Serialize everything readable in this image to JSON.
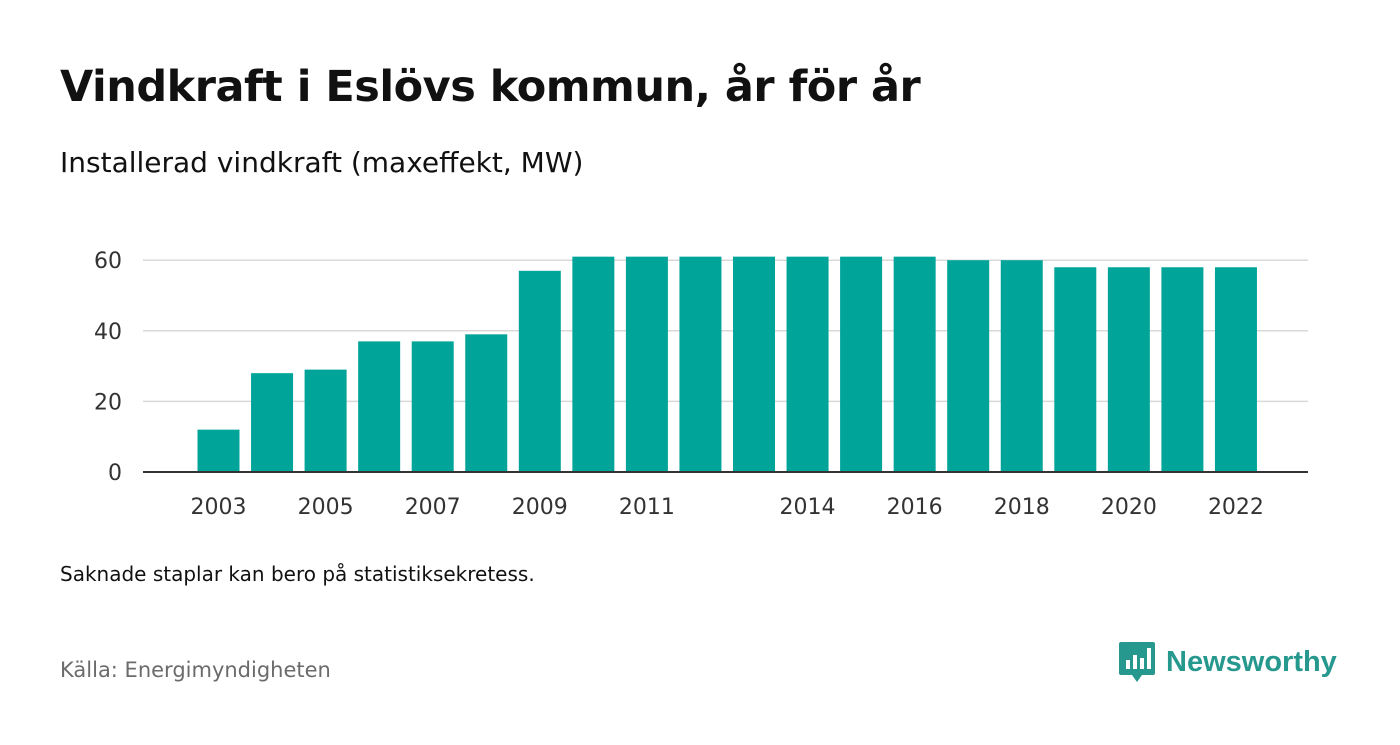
{
  "header": {
    "title": "Vindkraft i Eslövs kommun, år för år",
    "subtitle": "Installerad vindkraft (maxeffekt, MW)"
  },
  "footer": {
    "note": "Saknade staplar kan bero på statistiksekretess.",
    "source": "Källa: Energimyndigheten",
    "brand": "Newsworthy",
    "brand_icon": "newsworthy-logo-icon"
  },
  "colors": {
    "bar": "#00a499",
    "brand": "#26988e",
    "grid": "#d9d9d9",
    "axis": "#333333"
  },
  "chart_data": {
    "type": "bar",
    "title": "Vindkraft i Eslövs kommun, år för år",
    "subtitle": "Installerad vindkraft (maxeffekt, MW)",
    "categories": [
      "2003",
      "2004",
      "2005",
      "2006",
      "2007",
      "2008",
      "2009",
      "2010",
      "2011",
      "2012",
      "2013",
      "2014",
      "2015",
      "2016",
      "2017",
      "2018",
      "2019",
      "2020",
      "2021",
      "2022"
    ],
    "values": [
      12,
      28,
      29,
      37,
      37,
      39,
      57,
      61,
      61,
      61,
      61,
      61,
      61,
      61,
      60,
      60,
      58,
      58,
      58,
      58
    ],
    "x_tick_labels": [
      "2003",
      "2005",
      "2007",
      "2009",
      "2011",
      "2014",
      "2016",
      "2018",
      "2020",
      "2022"
    ],
    "y_ticks": [
      0,
      20,
      40,
      60
    ],
    "ylim": [
      0,
      61
    ],
    "grid": true,
    "legend": "none"
  }
}
